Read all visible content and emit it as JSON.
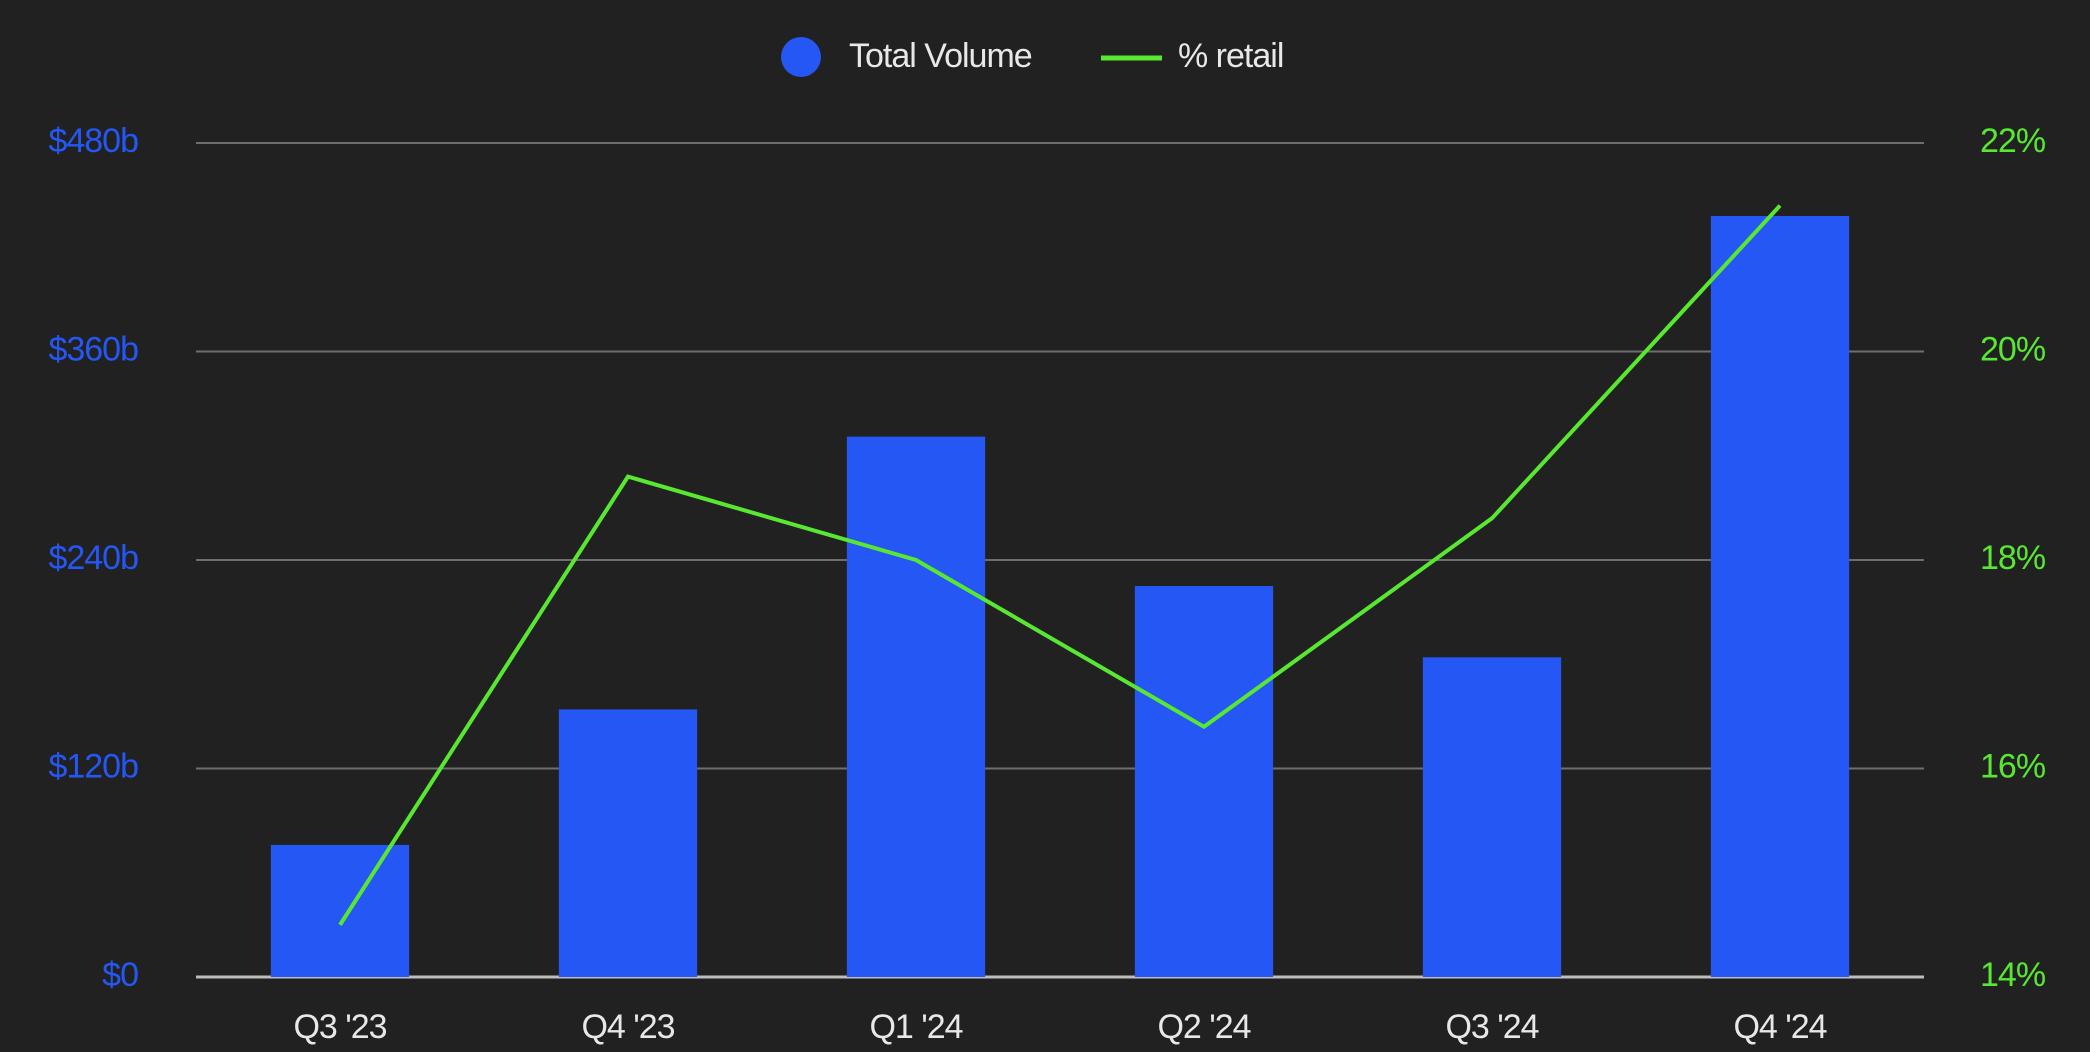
{
  "chart_data": {
    "type": "bar_line",
    "categories": [
      "Q3 '23",
      "Q4 '23",
      "Q1 '24",
      "Q2 '24",
      "Q3 '24",
      "Q4 '24"
    ],
    "series": [
      {
        "name": "Total Volume",
        "color": "#2557f5",
        "type": "bar",
        "values": [
          76,
          154,
          311,
          225,
          184,
          438
        ]
      },
      {
        "name": "% retail",
        "color": "#59e831",
        "type": "line",
        "axis": "y2",
        "values": [
          14.5,
          18.8,
          18.0,
          16.4,
          18.4,
          21.4
        ]
      }
    ],
    "ylim": [
      0,
      480
    ],
    "yticks": [
      {
        "value": 0,
        "label": "$0"
      },
      {
        "value": 120,
        "label": "$120b"
      },
      {
        "value": 240,
        "label": "$240b"
      },
      {
        "value": 360,
        "label": "$360b"
      },
      {
        "value": 480,
        "label": "$480b"
      }
    ],
    "y2lim": [
      14,
      22
    ],
    "y2ticks": [
      {
        "value": 14,
        "label": "14%"
      },
      {
        "value": 16,
        "label": "16%"
      },
      {
        "value": 18,
        "label": "18%"
      },
      {
        "value": 20,
        "label": "20%"
      },
      {
        "value": 22,
        "label": "22%"
      }
    ],
    "grid": true,
    "legend": "top"
  }
}
